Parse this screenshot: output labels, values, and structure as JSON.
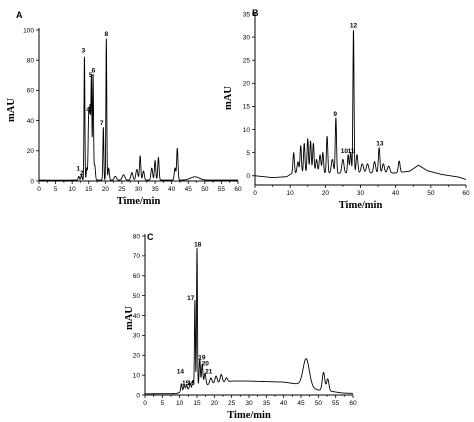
{
  "chart_data": [
    {
      "type": "line",
      "panel_label": "A",
      "xlabel": "Time/min",
      "ylabel": "mAU",
      "xlim": [
        0,
        60
      ],
      "ylim": [
        0,
        100
      ],
      "x_ticks": [
        0,
        5,
        10,
        15,
        20,
        25,
        30,
        35,
        40,
        45,
        50,
        55,
        60
      ],
      "y_ticks": [
        0,
        20,
        40,
        60,
        80,
        100
      ],
      "series": [
        {
          "baseline": [
            [
              0,
              0.6
            ],
            [
              8,
              0.5
            ],
            [
              10,
              0.6
            ],
            [
              60,
              0.6
            ]
          ],
          "peaks": [
            [
              12.0,
              2.5,
              0.18
            ],
            [
              12.8,
              3.5,
              0.18
            ],
            [
              13.7,
              82,
              0.13
            ],
            [
              14.4,
              8,
              0.15
            ],
            [
              15.0,
              44,
              0.18
            ],
            [
              15.4,
              45,
              0.16
            ],
            [
              15.8,
              68,
              0.14
            ],
            [
              16.3,
              70,
              0.14
            ],
            [
              16.8,
              10,
              0.2
            ],
            [
              19.4,
              35,
              0.14
            ],
            [
              20.3,
              94,
              0.13
            ],
            [
              21.0,
              8,
              0.2
            ],
            [
              23.0,
              2.5,
              0.35
            ],
            [
              25.5,
              3.5,
              0.4
            ],
            [
              28.0,
              5,
              0.3
            ],
            [
              29.5,
              7,
              0.3
            ],
            [
              30.5,
              16,
              0.2
            ],
            [
              31.5,
              6,
              0.25
            ],
            [
              34.0,
              8,
              0.25
            ],
            [
              35.0,
              13,
              0.2
            ],
            [
              36.0,
              15,
              0.2
            ],
            [
              41.0,
              8,
              0.22
            ],
            [
              41.7,
              21,
              0.2
            ],
            [
              47.0,
              2.2,
              1.3
            ]
          ]
        }
      ],
      "peak_labels": [
        {
          "label": "1",
          "x": 11.8,
          "y": 6
        },
        {
          "label": "2",
          "x": 12.9,
          "y": 3
        },
        {
          "label": "3",
          "x": 13.4,
          "y": 84
        },
        {
          "label": "4",
          "x": 14.8,
          "y": 45
        },
        {
          "label": "5",
          "x": 15.6,
          "y": 68
        },
        {
          "label": "6",
          "x": 16.4,
          "y": 71
        },
        {
          "label": "7",
          "x": 18.9,
          "y": 36
        },
        {
          "label": "8",
          "x": 20.3,
          "y": 95
        }
      ]
    },
    {
      "type": "line",
      "panel_label": "B",
      "xlabel": "Time/min",
      "ylabel": "mAU",
      "xlim": [
        0,
        60
      ],
      "ylim": [
        -2,
        35
      ],
      "x_ticks": [
        0,
        10,
        20,
        30,
        40,
        50,
        60
      ],
      "y_ticks": [
        0,
        5,
        10,
        15,
        20,
        25,
        30,
        35
      ],
      "series": [
        {
          "baseline": [
            [
              0,
              0
            ],
            [
              5,
              -0.4
            ],
            [
              9,
              -0.2
            ],
            [
              10.5,
              0.5
            ],
            [
              40,
              0.6
            ],
            [
              44,
              1.0
            ],
            [
              46.5,
              2.3
            ],
            [
              49,
              1.1
            ],
            [
              53,
              0.3
            ],
            [
              58,
              -0.3
            ],
            [
              60,
              -0.8
            ]
          ],
          "peaks": [
            [
              11.0,
              4.5,
              0.2
            ],
            [
              12.2,
              2.5,
              0.25
            ],
            [
              13.0,
              6,
              0.2
            ],
            [
              14.0,
              6.5,
              0.2
            ],
            [
              15.0,
              7.5,
              0.2
            ],
            [
              15.8,
              7,
              0.2
            ],
            [
              16.6,
              6.5,
              0.2
            ],
            [
              17.5,
              3,
              0.25
            ],
            [
              18.5,
              4,
              0.25
            ],
            [
              19.3,
              4.5,
              0.2
            ],
            [
              20.5,
              8,
              0.2
            ],
            [
              22.0,
              3,
              0.3
            ],
            [
              23.0,
              12,
              0.18
            ],
            [
              25.0,
              3,
              0.3
            ],
            [
              26.5,
              4,
              0.2
            ],
            [
              27.2,
              4.5,
              0.2
            ],
            [
              28.0,
              31,
              0.16
            ],
            [
              29.0,
              4,
              0.25
            ],
            [
              30.5,
              2,
              0.35
            ],
            [
              32.0,
              2,
              0.35
            ],
            [
              34.0,
              2.5,
              0.3
            ],
            [
              35.3,
              5.5,
              0.22
            ],
            [
              36.5,
              2,
              0.3
            ],
            [
              38.0,
              1.5,
              0.35
            ],
            [
              41.0,
              2.5,
              0.25
            ]
          ]
        }
      ],
      "peak_labels": [
        {
          "label": "9",
          "x": 22.8,
          "y": 12.6
        },
        {
          "label": "10",
          "x": 25.4,
          "y": 4.6
        },
        {
          "label": "11",
          "x": 27.3,
          "y": 4.6
        },
        {
          "label": "12",
          "x": 28.0,
          "y": 31.8
        },
        {
          "label": "13",
          "x": 35.5,
          "y": 6.2
        }
      ]
    },
    {
      "type": "line",
      "panel_label": "C",
      "xlabel": "Time/min",
      "ylabel": "mAU",
      "xlim": [
        0,
        60
      ],
      "ylim": [
        0,
        80
      ],
      "x_ticks": [
        0,
        5,
        10,
        15,
        20,
        25,
        30,
        35,
        40,
        45,
        50,
        55,
        60
      ],
      "y_ticks": [
        0,
        10,
        20,
        30,
        40,
        50,
        60,
        70,
        80
      ],
      "series": [
        {
          "baseline": [
            [
              0,
              0.6
            ],
            [
              9,
              0.7
            ],
            [
              11,
              2.0
            ],
            [
              14,
              3.5
            ],
            [
              20,
              6.0
            ],
            [
              25,
              7.0
            ],
            [
              30,
              7.0
            ],
            [
              40,
              6.5
            ],
            [
              42,
              6.0
            ],
            [
              44,
              5.5
            ],
            [
              50,
              2.5
            ],
            [
              51,
              2.5
            ],
            [
              57,
              1.0
            ],
            [
              60,
              0.8
            ]
          ],
          "peaks": [
            [
              10.5,
              4,
              0.18
            ],
            [
              11.3,
              3,
              0.2
            ],
            [
              12.0,
              2.5,
              0.2
            ],
            [
              13.0,
              3,
              0.2
            ],
            [
              13.8,
              4,
              0.18
            ],
            [
              14.4,
              44,
              0.13
            ],
            [
              15.0,
              70,
              0.13
            ],
            [
              15.8,
              14,
              0.18
            ],
            [
              16.5,
              11,
              0.2
            ],
            [
              17.3,
              6,
              0.25
            ],
            [
              19.0,
              3,
              0.3
            ],
            [
              20.5,
              3.5,
              0.3
            ],
            [
              22.0,
              4,
              0.3
            ],
            [
              23.5,
              2,
              0.3
            ],
            [
              46.5,
              14,
              0.9
            ],
            [
              51.5,
              9,
              0.35
            ],
            [
              52.7,
              6,
              0.35
            ]
          ]
        }
      ],
      "peak_labels": [
        {
          "label": "14",
          "x": 10.2,
          "y": 10
        },
        {
          "label": "15",
          "x": 11.7,
          "y": 4.2
        },
        {
          "label": "16",
          "x": 13.3,
          "y": 4.2
        },
        {
          "label": "17",
          "x": 13.2,
          "y": 47
        },
        {
          "label": "18",
          "x": 15.2,
          "y": 74
        },
        {
          "label": "19",
          "x": 16.4,
          "y": 17
        },
        {
          "label": "20",
          "x": 17.4,
          "y": 14
        },
        {
          "label": "21",
          "x": 18.4,
          "y": 10
        }
      ]
    }
  ]
}
